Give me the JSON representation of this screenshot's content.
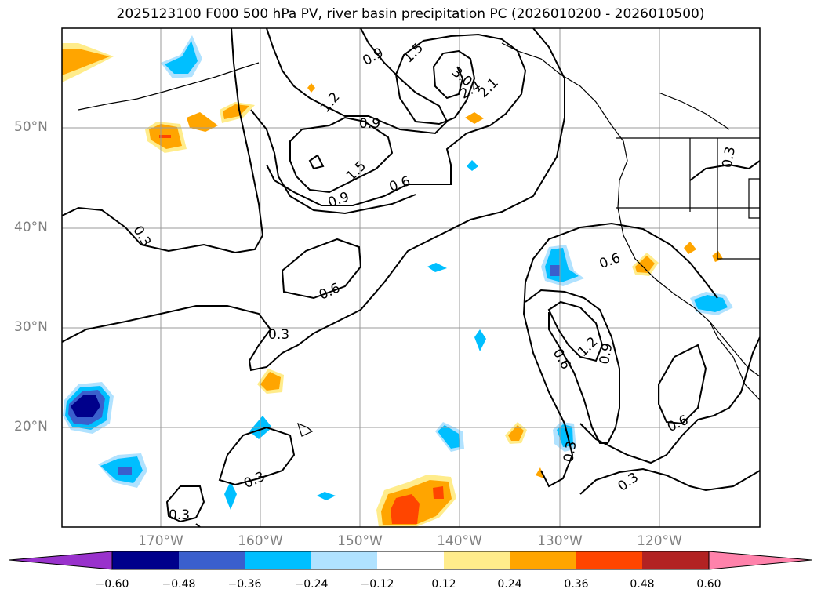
{
  "title": "2025123100 F000 500 hPa PV, river basin precipitation PC (2026010200 - 2026010500)",
  "lat_labels": [
    "50°N",
    "40°N",
    "30°N",
    "20°N"
  ],
  "lon_labels": [
    "170°W",
    "160°W",
    "150°W",
    "140°W",
    "130°W",
    "120°W"
  ],
  "contour_labels": [
    "0.9",
    "1.5",
    "3.0",
    "2.4",
    "2.1",
    "1.2",
    "0.9",
    "1.5",
    "0.9",
    "0.6",
    "0.3",
    "0.3",
    "0.6",
    "0.3",
    "0.6",
    "1.2",
    "0.9",
    "0.6",
    "0.6",
    "0.3",
    "0.3",
    "0.3",
    "0.3"
  ],
  "colorbar": {
    "ticks": [
      "−0.60",
      "−0.48",
      "−0.36",
      "−0.24",
      "−0.12",
      "0.12",
      "0.24",
      "0.36",
      "0.48",
      "0.60"
    ],
    "colors": [
      "#9932cc",
      "#00008b",
      "#3a5fcd",
      "#00bfff",
      "#b0e2ff",
      "#ffffff",
      "#ffec8b",
      "#ffa500",
      "#ff4500",
      "#b22222",
      "#ff82ab"
    ]
  }
}
